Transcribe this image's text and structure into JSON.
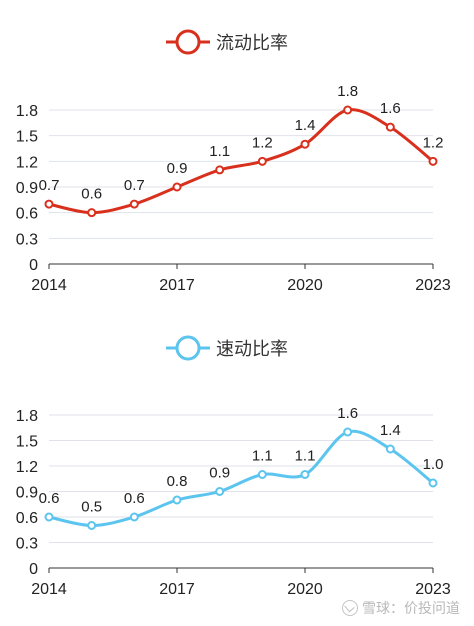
{
  "chart_data": [
    {
      "type": "line",
      "legend": "流动比率",
      "color": "#d9301e",
      "x": [
        "2014",
        "2015",
        "2016",
        "2017",
        "2018",
        "2019",
        "2020",
        "2021",
        "2022",
        "2023"
      ],
      "values": [
        0.7,
        0.6,
        0.7,
        0.9,
        1.1,
        1.2,
        1.4,
        1.8,
        1.6,
        1.2
      ],
      "labels": [
        "0.7",
        "0.6",
        "0.7",
        "0.9",
        "1.1",
        "1.2",
        "1.4",
        "1.8",
        "1.6",
        "1.2"
      ],
      "xticks": [
        "2014",
        "2017",
        "2020",
        "2023"
      ],
      "yticks": [
        "0",
        "0.3",
        "0.6",
        "0.9",
        "1.2",
        "1.5",
        "1.8"
      ],
      "ylim": [
        0,
        1.8
      ],
      "grid": true,
      "legend_position": "top-center"
    },
    {
      "type": "line",
      "legend": "速动比率",
      "color": "#5bc4ef",
      "x": [
        "2014",
        "2015",
        "2016",
        "2017",
        "2018",
        "2019",
        "2020",
        "2021",
        "2022",
        "2023"
      ],
      "values": [
        0.6,
        0.5,
        0.6,
        0.8,
        0.9,
        1.1,
        1.1,
        1.6,
        1.4,
        1.0
      ],
      "labels": [
        "0.6",
        "0.5",
        "0.6",
        "0.8",
        "0.9",
        "1.1",
        "1.1",
        "1.6",
        "1.4",
        "1.0"
      ],
      "xticks": [
        "2014",
        "2017",
        "2020",
        "2023"
      ],
      "yticks": [
        "0",
        "0.3",
        "0.6",
        "0.9",
        "1.2",
        "1.5",
        "1.8"
      ],
      "ylim": [
        0,
        1.8
      ],
      "grid": true,
      "legend_position": "top-center"
    }
  ],
  "watermark": "雪球：价投问道"
}
